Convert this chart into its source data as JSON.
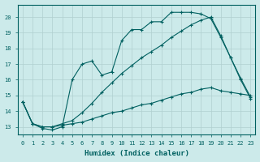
{
  "xlabel": "Humidex (Indice chaleur)",
  "bg_color": "#cceaea",
  "grid_color": "#b0d0d0",
  "line_color": "#006060",
  "xlim": [
    -0.5,
    23.5
  ],
  "ylim": [
    12.5,
    20.8
  ],
  "yticks": [
    13,
    14,
    15,
    16,
    17,
    18,
    19,
    20
  ],
  "xticks": [
    0,
    1,
    2,
    3,
    4,
    5,
    6,
    7,
    8,
    9,
    10,
    11,
    12,
    13,
    14,
    15,
    16,
    17,
    18,
    19,
    20,
    21,
    22,
    23
  ],
  "line1_x": [
    0,
    1,
    2,
    3,
    4,
    5,
    6,
    7,
    8,
    9,
    10,
    11,
    12,
    13,
    14,
    15,
    16,
    17,
    18,
    19,
    20,
    21,
    22,
    23
  ],
  "line1_y": [
    14.6,
    13.2,
    12.9,
    12.8,
    13.0,
    16.0,
    17.0,
    17.2,
    16.3,
    16.5,
    18.5,
    19.2,
    19.2,
    19.7,
    19.7,
    20.3,
    20.3,
    20.3,
    20.2,
    19.9,
    18.7,
    17.4,
    16.0,
    14.8
  ],
  "line2_x": [
    0,
    1,
    2,
    3,
    4,
    5,
    6,
    7,
    8,
    9,
    10,
    11,
    12,
    13,
    14,
    15,
    16,
    17,
    18,
    19,
    20,
    21,
    22,
    23
  ],
  "line2_y": [
    14.6,
    13.2,
    13.0,
    13.0,
    13.2,
    13.4,
    13.9,
    14.5,
    15.2,
    15.8,
    16.4,
    16.9,
    17.4,
    17.8,
    18.2,
    18.7,
    19.1,
    19.5,
    19.8,
    20.0,
    18.8,
    17.4,
    16.1,
    14.9
  ],
  "line3_x": [
    0,
    1,
    2,
    3,
    4,
    5,
    6,
    7,
    8,
    9,
    10,
    11,
    12,
    13,
    14,
    15,
    16,
    17,
    18,
    19,
    20,
    21,
    22,
    23
  ],
  "line3_y": [
    14.6,
    13.2,
    13.0,
    13.0,
    13.1,
    13.2,
    13.3,
    13.5,
    13.7,
    13.9,
    14.0,
    14.2,
    14.4,
    14.5,
    14.7,
    14.9,
    15.1,
    15.2,
    15.4,
    15.5,
    15.3,
    15.2,
    15.1,
    15.0
  ]
}
